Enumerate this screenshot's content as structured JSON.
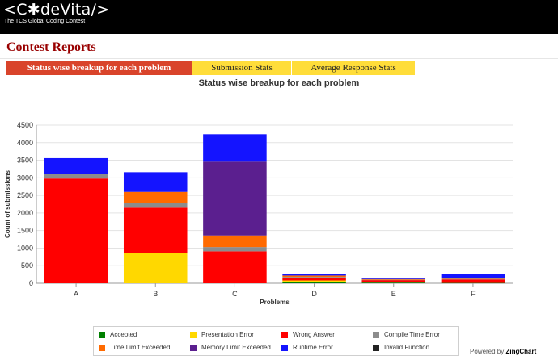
{
  "header": {
    "logo_text": "<C✱deVita/>",
    "tagline": "The TCS Global Coding Contest"
  },
  "page_title": "Contest Reports",
  "tabs": [
    {
      "label": "Status wise breakup for each problem",
      "active": true
    },
    {
      "label": "Submission Stats",
      "active": false
    },
    {
      "label": "Average Response Stats",
      "active": false
    }
  ],
  "colors": {
    "header_bg": "#000000",
    "title": "#990000",
    "tab_active": "#d9442b",
    "tab_inactive": "#ffdd3a"
  },
  "chart_data": {
    "type": "bar",
    "stacked": true,
    "title": "Status wise breakup for each problem",
    "xlabel": "Problems",
    "ylabel": "Count of submissions",
    "ylim": [
      0,
      4500
    ],
    "yticks": [
      0,
      500,
      1000,
      1500,
      2000,
      2500,
      3000,
      3500,
      4000,
      4500
    ],
    "grid": true,
    "categories": [
      "A",
      "B",
      "C",
      "D",
      "E",
      "F"
    ],
    "series": [
      {
        "name": "Accepted",
        "color": "#008000",
        "values": [
          0,
          0,
          0,
          40,
          20,
          10
        ]
      },
      {
        "name": "Presentation Error",
        "color": "#ffd800",
        "values": [
          0,
          850,
          0,
          40,
          0,
          0
        ]
      },
      {
        "name": "Wrong Answer",
        "color": "#ff0000",
        "values": [
          2980,
          1300,
          910,
          80,
          70,
          100
        ]
      },
      {
        "name": "Compile Time Error",
        "color": "#8c8c8c",
        "values": [
          120,
          130,
          120,
          20,
          10,
          20
        ]
      },
      {
        "name": "Time Limit Exceeded",
        "color": "#ff6a00",
        "values": [
          0,
          320,
          330,
          40,
          20,
          10
        ]
      },
      {
        "name": "Memory Limit Exceeded",
        "color": "#5b1f8f",
        "values": [
          0,
          0,
          2100,
          0,
          0,
          0
        ]
      },
      {
        "name": "Runtime Error",
        "color": "#1414ff",
        "values": [
          460,
          560,
          780,
          40,
          40,
          120
        ]
      },
      {
        "name": "Invalid Function",
        "color": "#222222",
        "values": [
          0,
          0,
          0,
          0,
          0,
          0
        ]
      }
    ]
  },
  "powered_by": {
    "prefix": "Powered by",
    "brand": "ZingChart"
  }
}
